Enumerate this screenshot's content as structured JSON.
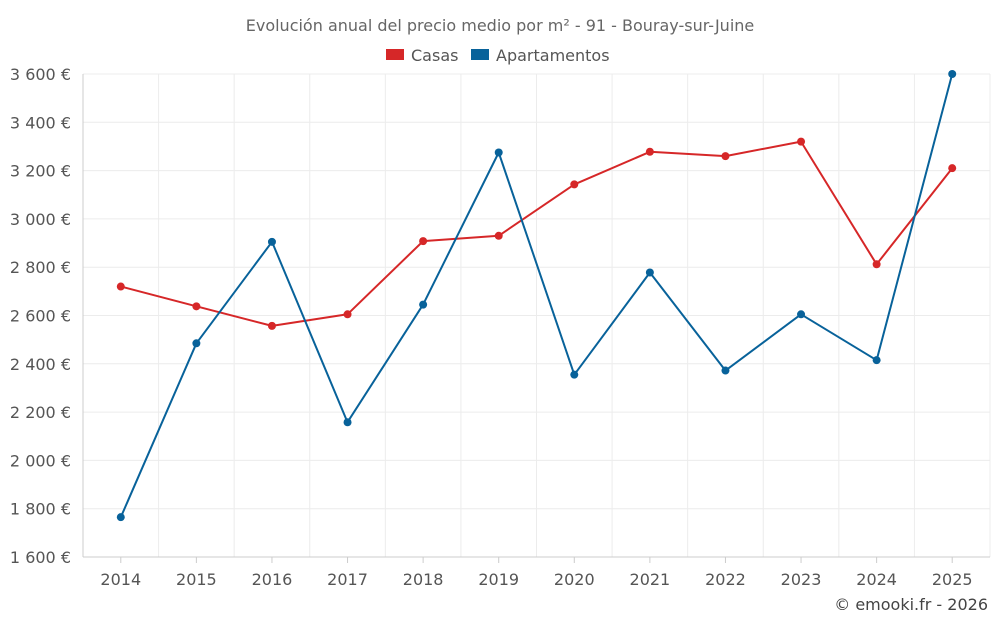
{
  "chart_data": {
    "type": "line",
    "title": "Evolución anual del precio medio por m² - 91 - Bouray-sur-Juine",
    "xlabel": "",
    "ylabel": "",
    "categories": [
      "2014",
      "2015",
      "2016",
      "2017",
      "2018",
      "2019",
      "2020",
      "2021",
      "2022",
      "2023",
      "2024",
      "2025"
    ],
    "ylim": [
      1600,
      3600
    ],
    "yticks": [
      1600,
      1800,
      2000,
      2200,
      2400,
      2600,
      2800,
      3000,
      3200,
      3400,
      3600
    ],
    "ytick_labels": [
      "1 600 €",
      "1 800 €",
      "2 000 €",
      "2 200 €",
      "2 400 €",
      "2 600 €",
      "2 800 €",
      "3 000 €",
      "3 200 €",
      "3 400 €",
      "3 600 €"
    ],
    "grid": true,
    "legend_position": "top-center",
    "series": [
      {
        "name": "Casas",
        "color": "#d62728",
        "values": [
          2720,
          2638,
          2557,
          2605,
          2908,
          2930,
          3143,
          3278,
          3260,
          3320,
          2812,
          3210
        ]
      },
      {
        "name": "Apartamentos",
        "color": "#08629a",
        "values": [
          1765,
          2485,
          2905,
          2158,
          2645,
          3275,
          2355,
          2778,
          2372,
          2605,
          2415,
          3600
        ]
      }
    ],
    "credit": "© emooki.fr - 2026"
  }
}
